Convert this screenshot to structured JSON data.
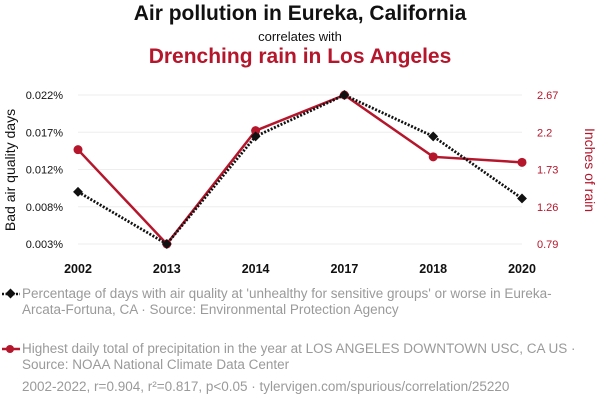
{
  "header": {
    "title": "Air pollution in Eureka, California",
    "subtitle": "correlates with",
    "title2": "Drenching rain in Los Angeles"
  },
  "colors": {
    "series1": "#111111",
    "series2": "#b5162b",
    "grid": "#eeeeee",
    "legend_text": "#9a9a9a"
  },
  "chart_data": {
    "type": "line",
    "title": "Air pollution in Eureka, California correlates with Drenching rain in Los Angeles",
    "categories": [
      "2002",
      "2013",
      "2014",
      "2017",
      "2018",
      "2020"
    ],
    "ylabel_left": "Bad air quality days",
    "ylabel_right": "Inches of rain",
    "yticks_left": [
      "0.003%",
      "0.008%",
      "0.012%",
      "0.017%",
      "0.022%"
    ],
    "yticks_left_values": [
      0.003,
      0.0075,
      0.012,
      0.0165,
      0.021
    ],
    "ylim_left": [
      0.003,
      0.021
    ],
    "yticks_right": [
      "0.79",
      "1.26",
      "1.73",
      "2.2",
      "2.67"
    ],
    "yticks_right_values": [
      0.79,
      1.26,
      1.73,
      2.2,
      2.67
    ],
    "ylim_right": [
      0.79,
      2.67
    ],
    "grid": true,
    "series": [
      {
        "name": "Percentage of days with air quality at 'unhealthy for sensitive groups' or worse in Eureka-Arcata-Fortuna, CA",
        "axis": "left",
        "style": "dotted",
        "marker": "diamond",
        "values": [
          0.0093,
          0.003,
          0.016,
          0.021,
          0.016,
          0.0085
        ]
      },
      {
        "name": "Highest daily total of precipitation in the year at LOS ANGELES DOWNTOWN USC, CA",
        "axis": "right",
        "style": "solid",
        "marker": "circle",
        "values": [
          1.98,
          0.79,
          2.22,
          2.67,
          1.89,
          1.82
        ]
      }
    ]
  },
  "legend": [
    {
      "text": "Percentage of days with air quality at 'unhealthy for sensitive groups' or worse in Eureka-Arcata-Fortuna, CA · Source: Environmental Protection Agency"
    },
    {
      "text": "Highest daily total of precipitation in the year at LOS ANGELES DOWNTOWN USC, CA US · Source: NOAA National Climate Data Center"
    }
  ],
  "footer": "2002-2022, r=0.904, r²=0.817, p<0.05 · tylervigen.com/spurious/correlation/25220"
}
